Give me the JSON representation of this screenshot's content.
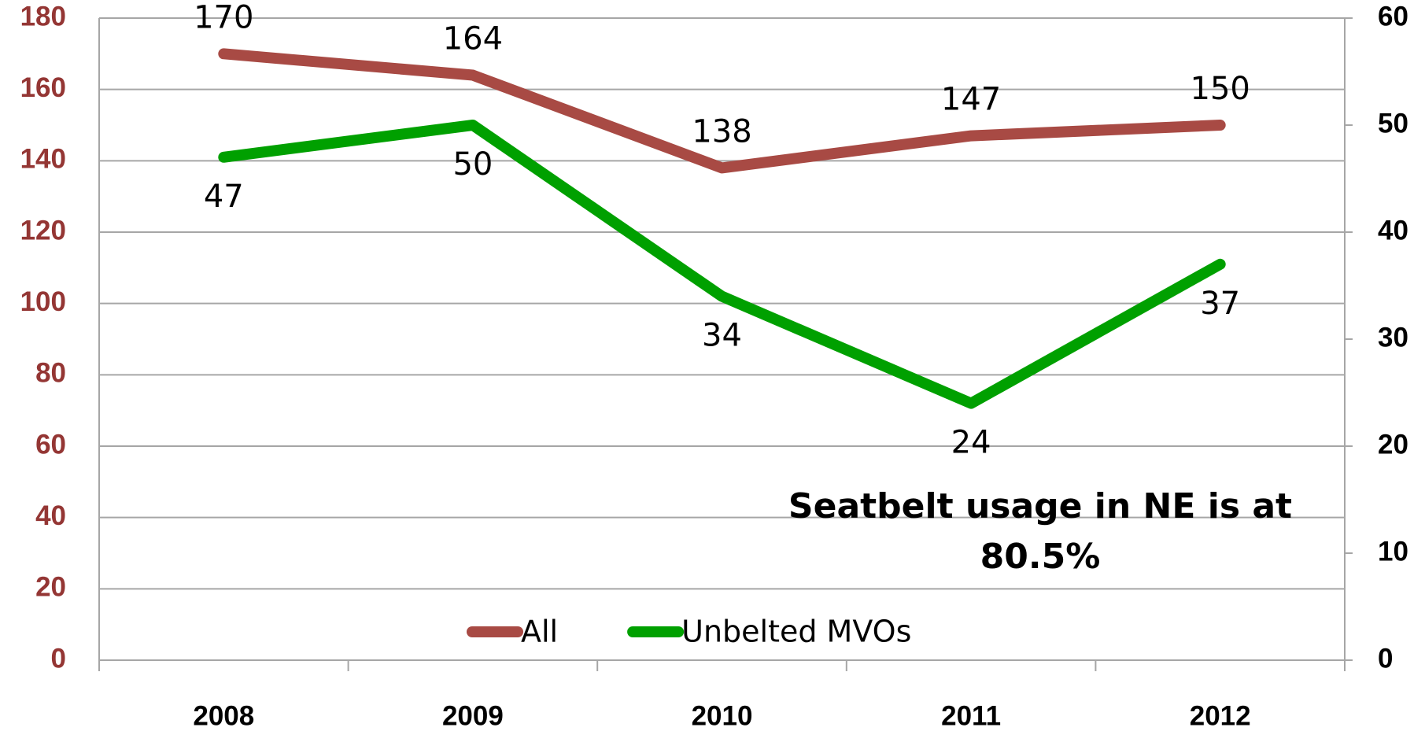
{
  "chart_data": {
    "type": "line",
    "categories": [
      "2008",
      "2009",
      "2010",
      "2011",
      "2012"
    ],
    "series": [
      {
        "name": "All",
        "color": "#a84a44",
        "values": [
          170,
          164,
          138,
          147,
          150
        ]
      },
      {
        "name": "Unbelted MVOs",
        "color": "#00a000",
        "axis": "y2",
        "values": [
          47,
          50,
          34,
          24,
          37
        ]
      }
    ],
    "ylim": [
      0,
      180
    ],
    "yticks": [
      0,
      20,
      40,
      60,
      80,
      100,
      120,
      140,
      160,
      180
    ],
    "y2lim": [
      0,
      60
    ],
    "y2ticks": [
      0,
      10,
      20,
      30,
      40,
      50,
      60
    ],
    "ytick_color": "#943634",
    "grid": true,
    "legend": "bottom",
    "annotation": "Seatbelt usage in NE is at 80.5%"
  }
}
